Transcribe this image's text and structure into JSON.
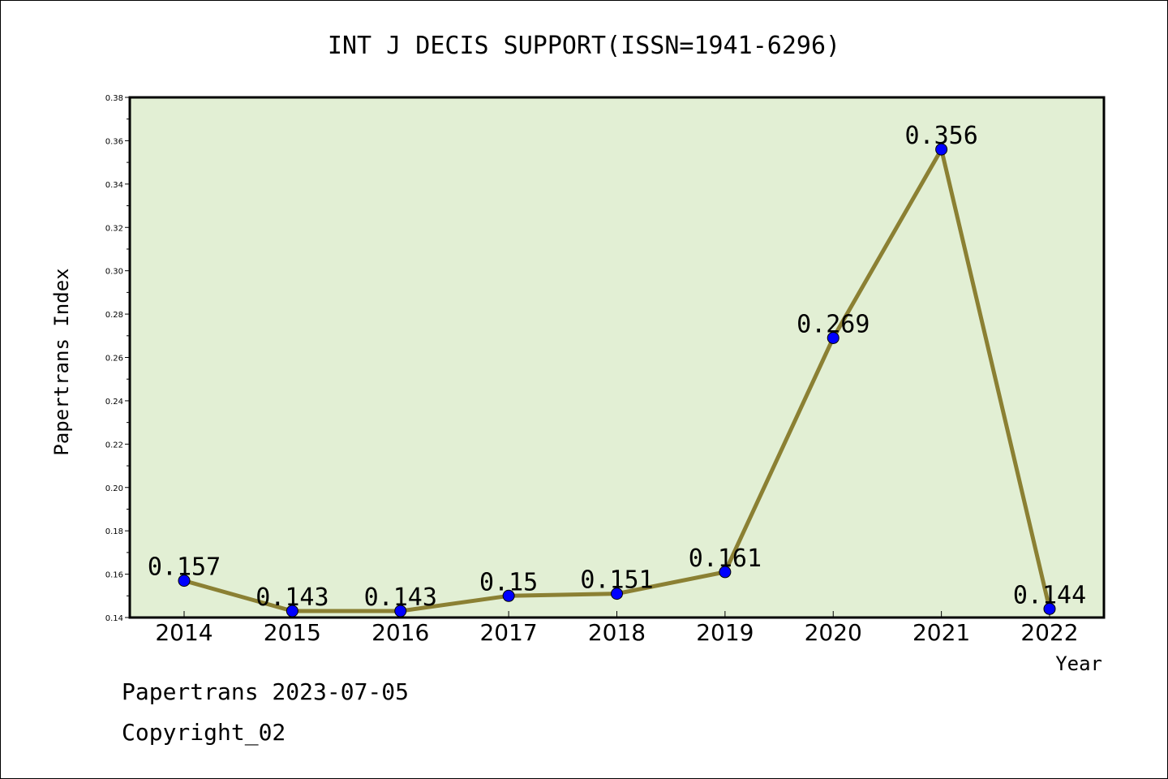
{
  "chart_data": {
    "type": "line",
    "title": "INT J DECIS SUPPORT(ISSN=1941-6296)",
    "xlabel": "Year",
    "ylabel": "Papertrans Index",
    "categories": [
      "2014",
      "2015",
      "2016",
      "2017",
      "2018",
      "2019",
      "2020",
      "2021",
      "2022"
    ],
    "values": [
      0.157,
      0.143,
      0.143,
      0.15,
      0.151,
      0.161,
      0.269,
      0.356,
      0.144
    ],
    "data_labels": [
      "0.157",
      "0.143",
      "0.143",
      "0.15",
      "0.151",
      "0.161",
      "0.269",
      "0.356",
      "0.144"
    ],
    "ylim": [
      0.14,
      0.38
    ],
    "yticks": [
      "0.14",
      "0.16",
      "0.18",
      "0.20",
      "0.22",
      "0.24",
      "0.26",
      "0.28",
      "0.30",
      "0.32",
      "0.34",
      "0.36",
      "0.38"
    ],
    "grid": false,
    "colors": {
      "plot_background": "#e2efd4",
      "line": "#8b8033",
      "marker": "#0000ff"
    }
  },
  "footer": {
    "line1": "Papertrans 2023-07-05",
    "line2": "Copyright_02"
  }
}
